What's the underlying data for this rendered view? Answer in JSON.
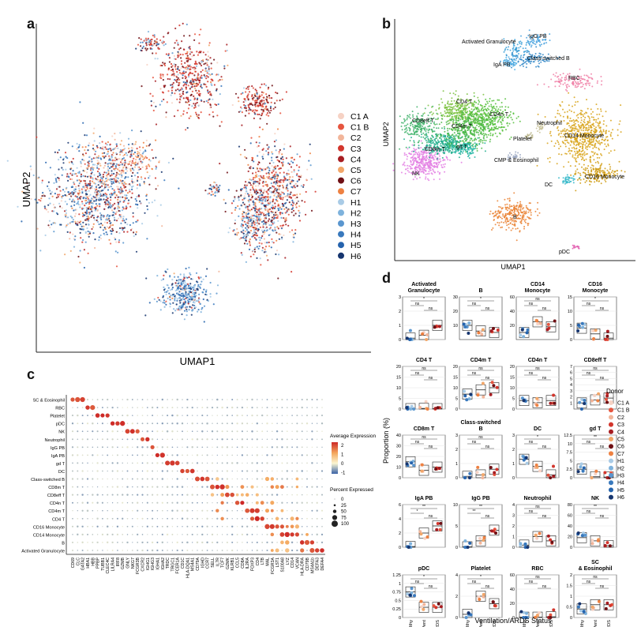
{
  "panels": {
    "a": {
      "letter": "a",
      "xlabel": "UMAP1",
      "ylabel": "UMAP2",
      "legend": [
        "C1 A",
        "C1 B",
        "C2",
        "C3",
        "C4",
        "C5",
        "C6",
        "C7",
        "H1",
        "H2",
        "H3",
        "H4",
        "H5",
        "H6"
      ],
      "legend_colors": [
        "#f6d2c4",
        "#e6553f",
        "#f2b59a",
        "#d3362d",
        "#a71d22",
        "#f2a76a",
        "#6f0f14",
        "#ee8142",
        "#a9cbe6",
        "#7eb2dc",
        "#5a96cf",
        "#3979bd",
        "#2563ad",
        "#16356f"
      ]
    },
    "b": {
      "letter": "b",
      "xlabel": "UMAP1",
      "ylabel": "UMAP2",
      "clusters": [
        {
          "label": "Activated Granulocyte",
          "color": "#3aa0d8"
        },
        {
          "label": "IgG PB",
          "color": "#4aa3df"
        },
        {
          "label": "Class-switched B",
          "color": "#2f86c7"
        },
        {
          "label": "IgA PB",
          "color": "#56b4e9"
        },
        {
          "label": "RBC",
          "color": "#f07fa6"
        },
        {
          "label": "CD4 T",
          "color": "#7cc242"
        },
        {
          "label": "CD8eff T",
          "color": "#3fb16a"
        },
        {
          "label": "CD4n T",
          "color": "#55c03c"
        },
        {
          "label": "CD4m T",
          "color": "#4cb84a"
        },
        {
          "label": "gd T",
          "color": "#22b5a3"
        },
        {
          "label": "CD8m T",
          "color": "#1fae8c"
        },
        {
          "label": "NK",
          "color": "#e37fe3"
        },
        {
          "label": "Neutrophil",
          "color": "#c8c29a"
        },
        {
          "label": "Platelet",
          "color": "#b9b489"
        },
        {
          "label": "CD14 Monocyte",
          "color": "#d8a31a"
        },
        {
          "label": "CMP & Eosinophil",
          "color": "#9aa7c2"
        },
        {
          "label": "CD16 Monocyte",
          "color": "#cf9b12"
        },
        {
          "label": "DC",
          "color": "#33b7c9"
        },
        {
          "label": "B",
          "color": "#ea8234"
        },
        {
          "label": "pDC",
          "color": "#e25fb0"
        }
      ]
    },
    "c": {
      "letter": "c",
      "legend_expr_title": "Average Expression",
      "legend_expr_ticks": [
        "2",
        "1",
        "0",
        "-1"
      ],
      "legend_pct_title": "Percent Expressed",
      "legend_pct_ticks": [
        "0",
        "25",
        "50",
        "75",
        "100"
      ],
      "cell_types": [
        "SC & Eosinophil",
        "RBC",
        "Platelet",
        "pDC",
        "NK",
        "Neutrophil",
        "IgG PB",
        "IgA PB",
        "gd T",
        "DC",
        "Class-switched B",
        "CD8m T",
        "CD8eff T",
        "CD4n T",
        "CD4m T",
        "CD4 T",
        "CD16 Monocyte",
        "CD14 Monocyte",
        "B",
        "Activated Granulocyte"
      ],
      "genes": [
        "CD69",
        "CLC",
        "GATA2",
        "HBA1",
        "HBB",
        "PPBP",
        "TUBB1",
        "CLEC4C",
        "LILRA4",
        "IRF8",
        "GZMB",
        "GNLY",
        "NKG7",
        "FCGR3B",
        "CXCR2",
        "IGHG1",
        "IGHG3",
        "IGHA1",
        "IGHA2",
        "TRDC",
        "TRGC1",
        "FCER1A",
        "CD1C",
        "HLA-DQA1",
        "MS4A1",
        "CD79A",
        "IGHD",
        "CCR7",
        "SELL",
        "IL7R",
        "TCF7",
        "GZMK",
        "KLRB1",
        "CCL5",
        "CD8A",
        "IL2RA",
        "FOXP3",
        "CD4",
        "LTB",
        "MAL",
        "FCGR3A",
        "LST1",
        "S100A8",
        "LYZ",
        "CD14",
        "VCAN",
        "HLA-DRA",
        "CD79B",
        "MS4A1b",
        "DEFA3",
        "DEFA4"
      ]
    },
    "d": {
      "letter": "d",
      "xlabel": "Ventilation/ARDS Status",
      "ylabel": "Proportion (%)",
      "groups": [
        "Healthy",
        "NonVent",
        "ARDS"
      ],
      "sig_labels": [
        "*",
        "ns",
        "ns",
        "**"
      ],
      "legend_title": "Donor",
      "donors": [
        "C1 A",
        "C1 B",
        "C2",
        "C3",
        "C4",
        "C5",
        "C6",
        "C7",
        "H1",
        "H2",
        "H3",
        "H4",
        "H5",
        "H6"
      ],
      "donor_colors": [
        "#f6d2c4",
        "#e6553f",
        "#f2b59a",
        "#d3362d",
        "#a71d22",
        "#f2a76a",
        "#6f0f14",
        "#ee8142",
        "#a9cbe6",
        "#7eb2dc",
        "#5a96cf",
        "#3979bd",
        "#2563ad",
        "#16356f"
      ]
    }
  },
  "chart_data": [
    {
      "type": "scatter",
      "title": "",
      "xlabel": "UMAP1",
      "ylabel": "UMAP2",
      "series": [
        {
          "name": "C1 A"
        },
        {
          "name": "C1 B"
        },
        {
          "name": "C2"
        },
        {
          "name": "C3"
        },
        {
          "name": "C4"
        },
        {
          "name": "C5"
        },
        {
          "name": "C6"
        },
        {
          "name": "C7"
        },
        {
          "name": "H1"
        },
        {
          "name": "H2"
        },
        {
          "name": "H3"
        },
        {
          "name": "H4"
        },
        {
          "name": "H5"
        },
        {
          "name": "H6"
        }
      ]
    },
    {
      "type": "scatter",
      "title": "",
      "xlabel": "UMAP1",
      "ylabel": "UMAP2",
      "series": [
        {
          "name": "Activated Granulocyte"
        },
        {
          "name": "IgG PB"
        },
        {
          "name": "Class-switched B"
        },
        {
          "name": "IgA PB"
        },
        {
          "name": "RBC"
        },
        {
          "name": "CD4 T"
        },
        {
          "name": "CD8eff T"
        },
        {
          "name": "CD4n T"
        },
        {
          "name": "CD4m T"
        },
        {
          "name": "gd T"
        },
        {
          "name": "CD8m T"
        },
        {
          "name": "NK"
        },
        {
          "name": "Neutrophil"
        },
        {
          "name": "Platelet"
        },
        {
          "name": "CD14 Monocyte"
        },
        {
          "name": "CMP & Eosinophil"
        },
        {
          "name": "CD16 Monocyte"
        },
        {
          "name": "DC"
        },
        {
          "name": "B"
        },
        {
          "name": "pDC"
        }
      ]
    },
    {
      "type": "heatmap",
      "title": "",
      "xlabel": "",
      "ylabel": "",
      "legend": {
        "color_title": "Average Expression",
        "color_range": [
          -1,
          2
        ],
        "size_title": "Percent Expressed",
        "size_range": [
          0,
          100
        ]
      }
    },
    {
      "type": "box",
      "ylabel": "Proportion (%)",
      "xlabel": "Ventilation/ARDS Status",
      "categories": [
        "Healthy",
        "NonVent",
        "ARDS"
      ],
      "subplots": [
        {
          "title": "Activated Granulocyte",
          "ylim": [
            0,
            3
          ],
          "yticks": [
            0,
            1,
            2,
            3
          ],
          "medians": [
            0.1,
            0.3,
            1.0
          ],
          "sig": [
            "*",
            "ns",
            "ns"
          ]
        },
        {
          "title": "B",
          "ylim": [
            0,
            30
          ],
          "yticks": [
            10,
            20,
            30
          ],
          "medians": [
            10,
            6,
            5
          ],
          "sig": [
            "*",
            "ns",
            "ns"
          ]
        },
        {
          "title": "CD14 Monocyte",
          "ylim": [
            0,
            60
          ],
          "yticks": [
            20,
            40,
            60
          ],
          "medians": [
            10,
            25,
            18
          ],
          "sig": [
            "ns",
            "ns",
            "ns"
          ]
        },
        {
          "title": "CD16 Monocyte",
          "ylim": [
            0,
            15
          ],
          "yticks": [
            0,
            5,
            10,
            15
          ],
          "medians": [
            4,
            2,
            0.5
          ],
          "sig": [
            "*",
            "ns",
            "ns"
          ]
        },
        {
          "title": "CD4 T",
          "ylim": [
            0,
            20
          ],
          "yticks": [
            0,
            5,
            10,
            15,
            20
          ],
          "medians": [
            0.2,
            0.3,
            0.2
          ],
          "sig": [
            "ns",
            "ns",
            "ns"
          ]
        },
        {
          "title": "CD4m T",
          "ylim": [
            0,
            20
          ],
          "yticks": [
            0,
            5,
            10,
            15,
            20
          ],
          "medians": [
            7,
            9,
            10
          ],
          "sig": [
            "ns",
            "ns",
            "ns"
          ]
        },
        {
          "title": "CD4n T",
          "ylim": [
            0,
            20
          ],
          "yticks": [
            0,
            5,
            10,
            15,
            20
          ],
          "medians": [
            4,
            3,
            4
          ],
          "sig": [
            "ns",
            "ns",
            "ns"
          ]
        },
        {
          "title": "CD8eff T",
          "ylim": [
            0,
            7
          ],
          "yticks": [
            1,
            2,
            3,
            4,
            5,
            6,
            7
          ],
          "medians": [
            1,
            1.5,
            1.8
          ],
          "sig": [
            "ns",
            "ns",
            "ns"
          ]
        },
        {
          "title": "CD8m T",
          "ylim": [
            0,
            40
          ],
          "yticks": [
            0,
            10,
            20,
            30,
            40
          ],
          "medians": [
            15,
            7,
            10
          ],
          "sig": [
            "ns",
            "ns",
            "ns"
          ]
        },
        {
          "title": "Class-switched B",
          "ylim": [
            0,
            3
          ],
          "yticks": [
            0,
            1,
            2,
            3
          ],
          "medians": [
            0.1,
            0.2,
            0.6
          ],
          "sig": [
            "ns",
            "ns",
            "ns"
          ]
        },
        {
          "title": "DC",
          "ylim": [
            0,
            3
          ],
          "yticks": [
            0,
            1,
            2,
            3
          ],
          "medians": [
            1.3,
            0.8,
            0.2
          ],
          "sig": [
            "*",
            "ns",
            "ns"
          ]
        },
        {
          "title": "gd T",
          "ylim": [
            0,
            12.5
          ],
          "yticks": [
            0,
            2.5,
            5,
            7.5,
            10,
            12.5
          ],
          "medians": [
            2.5,
            0.3,
            0.2
          ],
          "sig": [
            "**",
            "ns",
            "ns"
          ]
        },
        {
          "title": "IgA PB",
          "ylim": [
            0,
            6
          ],
          "yticks": [
            0,
            2,
            4,
            6
          ],
          "medians": [
            0.1,
            2,
            3
          ],
          "sig": [
            "**",
            "*",
            "ns"
          ]
        },
        {
          "title": "IgG PB",
          "ylim": [
            0,
            10
          ],
          "yticks": [
            0,
            5,
            10
          ],
          "medians": [
            0.1,
            1.5,
            4
          ],
          "sig": [
            "**",
            "**",
            "ns"
          ]
        },
        {
          "title": "Neutrophil",
          "ylim": [
            0,
            4
          ],
          "yticks": [
            0,
            1,
            2,
            3,
            4
          ],
          "medians": [
            0.2,
            1.0,
            0.6
          ],
          "sig": [
            "ns",
            "ns",
            "ns"
          ]
        },
        {
          "title": "NK",
          "ylim": [
            0,
            80
          ],
          "yticks": [
            0,
            20,
            40,
            60,
            80
          ],
          "medians": [
            18,
            12,
            3
          ],
          "sig": [
            "**",
            "ns",
            "ns"
          ]
        },
        {
          "title": "pDC",
          "ylim": [
            0,
            1.25
          ],
          "yticks": [
            0,
            0.25,
            0.5,
            0.75,
            1,
            1.25
          ],
          "medians": [
            0.75,
            0.3,
            0.3
          ],
          "sig": [
            "*",
            "ns",
            "ns"
          ]
        },
        {
          "title": "Platelet",
          "ylim": [
            0,
            4
          ],
          "yticks": [
            0,
            2,
            4
          ],
          "medians": [
            0.3,
            2,
            1.3
          ],
          "sig": [
            "*",
            "ns",
            "ns"
          ]
        },
        {
          "title": "RBC",
          "ylim": [
            0,
            60
          ],
          "yticks": [
            0,
            20,
            40,
            60
          ],
          "medians": [
            0.5,
            0.5,
            1
          ],
          "sig": [
            "ns",
            "ns",
            "ns"
          ]
        },
        {
          "title": "SC & Eosinophil",
          "ylim": [
            0,
            2
          ],
          "yticks": [
            0,
            0.5,
            1,
            1.5,
            2
          ],
          "medians": [
            0.4,
            0.6,
            0.6
          ],
          "sig": [
            "ns",
            "ns",
            "ns"
          ]
        }
      ]
    }
  ]
}
